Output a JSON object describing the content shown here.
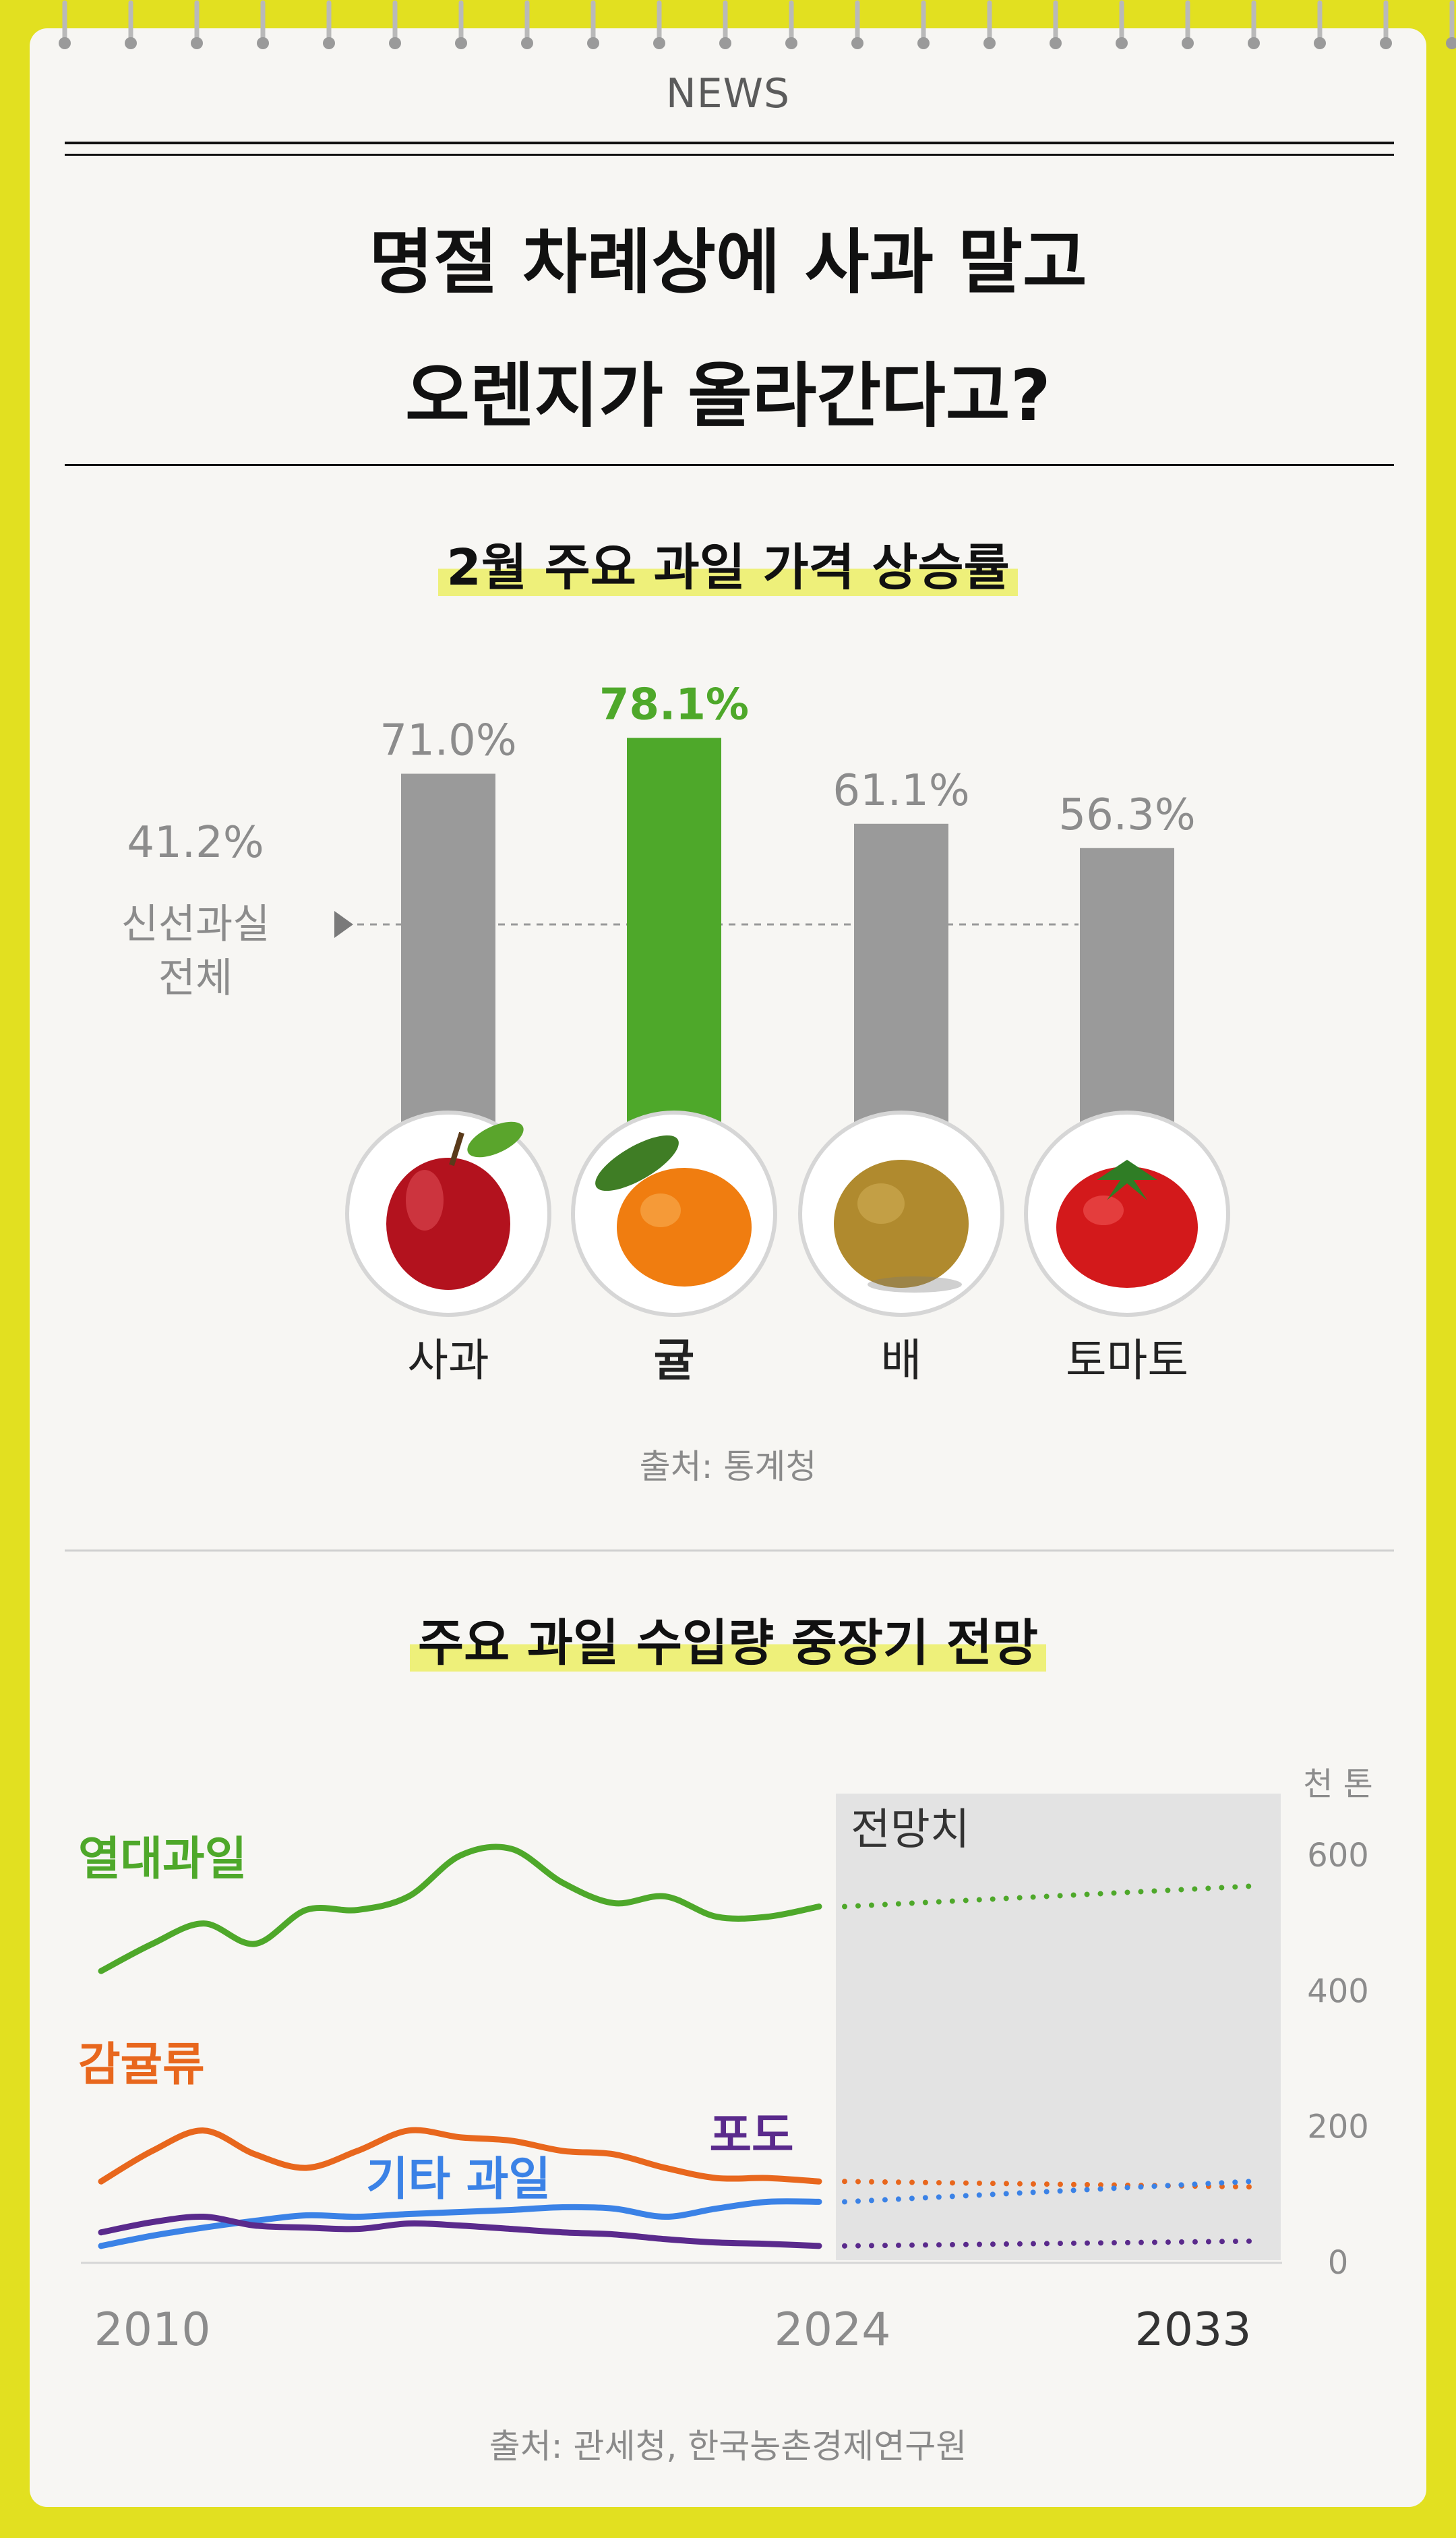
{
  "header": {
    "label": "NEWS"
  },
  "headline": {
    "line1": "명절 차례상에 사과 말고",
    "line2": "오렌지가 올라간다고?"
  },
  "section1": {
    "title": "2월 주요 과일 가격 상승률",
    "reference": {
      "value_text": "41.2%",
      "label_line1": "신선과실",
      "label_line2": "전체"
    },
    "source": "출처: 통계청"
  },
  "section2": {
    "title": "주요 과일 수입량 중장기 전망",
    "forecast_label": "전망치",
    "unit": "천 톤",
    "series_labels": {
      "tropical": "열대과일",
      "citrus": "감귤류",
      "other": "기타 과일",
      "grape": "포도"
    },
    "source": "출처: 관세청, 한국농촌경제연구원"
  },
  "chart_data": [
    {
      "type": "bar",
      "title": "2월 주요 과일 가격 상승률",
      "categories": [
        "사과",
        "귤",
        "배",
        "토마토"
      ],
      "values": [
        71.0,
        78.1,
        61.1,
        56.3
      ],
      "value_labels": [
        "71.0%",
        "78.1%",
        "61.1%",
        "56.3%"
      ],
      "highlight_index": 1,
      "reference_line": {
        "value": 41.2,
        "label": "신선과실 전체"
      },
      "colors": {
        "default": "#9a9a9a",
        "highlight": "#4ea82a",
        "highlight_text": "#4ea82a",
        "label_text": "#8c8c8c"
      },
      "icons": [
        "apple-icon",
        "tangerine-icon",
        "pear-icon",
        "tomato-icon"
      ],
      "ylim": [
        0,
        100
      ]
    },
    {
      "type": "line",
      "title": "주요 과일 수입량 중장기 전망",
      "ylabel": "천 톤",
      "x_ticks": [
        "2010",
        "2024",
        "2033"
      ],
      "ylim": [
        0,
        600
      ],
      "y_ticks": [
        0,
        200,
        400,
        600
      ],
      "forecast_range": [
        2024,
        2033
      ],
      "series": [
        {
          "name": "열대과일",
          "color": "#4ea82a",
          "x": [
            2010,
            2011,
            2012,
            2013,
            2014,
            2015,
            2016,
            2017,
            2018,
            2019,
            2020,
            2021,
            2022,
            2023,
            2024
          ],
          "y": [
            430,
            470,
            500,
            470,
            520,
            520,
            540,
            600,
            610,
            560,
            530,
            540,
            510,
            510,
            525
          ],
          "forecast_x": [
            2024,
            2033
          ],
          "forecast_y": [
            525,
            555
          ]
        },
        {
          "name": "감귤류",
          "color": "#e8671d",
          "x": [
            2010,
            2011,
            2012,
            2013,
            2014,
            2015,
            2016,
            2017,
            2018,
            2019,
            2020,
            2021,
            2022,
            2023,
            2024
          ],
          "y": [
            120,
            165,
            195,
            160,
            140,
            165,
            195,
            185,
            180,
            165,
            160,
            140,
            125,
            125,
            120
          ],
          "forecast_x": [
            2024,
            2033
          ],
          "forecast_y": [
            120,
            112
          ]
        },
        {
          "name": "기타 과일",
          "color": "#3b82e6",
          "x": [
            2010,
            2011,
            2012,
            2013,
            2014,
            2015,
            2016,
            2017,
            2018,
            2019,
            2020,
            2021,
            2022,
            2023,
            2024
          ],
          "y": [
            25,
            40,
            52,
            62,
            70,
            68,
            72,
            75,
            78,
            82,
            80,
            68,
            80,
            90,
            90
          ],
          "forecast_x": [
            2024,
            2033
          ],
          "forecast_y": [
            90,
            120
          ]
        },
        {
          "name": "포도",
          "color": "#5a2a8c",
          "x": [
            2010,
            2011,
            2012,
            2013,
            2014,
            2015,
            2016,
            2017,
            2018,
            2019,
            2020,
            2021,
            2022,
            2023,
            2024
          ],
          "y": [
            45,
            60,
            68,
            55,
            52,
            50,
            58,
            55,
            50,
            45,
            42,
            35,
            30,
            28,
            25
          ],
          "forecast_x": [
            2024,
            2033
          ],
          "forecast_y": [
            25,
            32
          ]
        }
      ]
    }
  ]
}
